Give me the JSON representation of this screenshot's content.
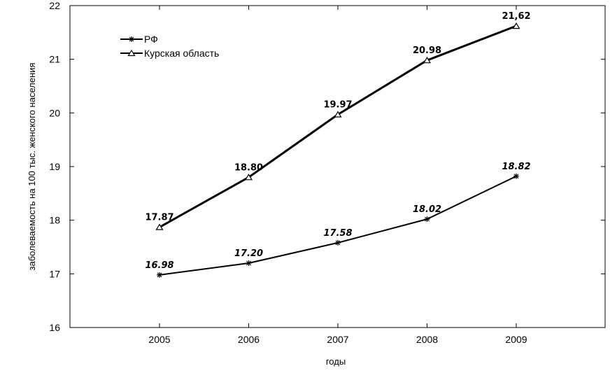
{
  "chart_data": {
    "type": "line",
    "xlabel": "годы",
    "ylabel": "заболеваемость на 100 тыс. женского населения",
    "x": [
      2005,
      2006,
      2007,
      2008,
      2009
    ],
    "x_tick_labels": [
      "2005",
      "2006",
      "2007",
      "2008",
      "2009"
    ],
    "ylim": [
      16,
      22
    ],
    "y_ticks": [
      16,
      17,
      18,
      19,
      20,
      21,
      22
    ],
    "y_tick_labels": [
      "16",
      "17",
      "18",
      "19",
      "20",
      "21",
      "22"
    ],
    "legend_position": "top-left",
    "grid": false,
    "series": [
      {
        "name": "РФ",
        "marker": "star",
        "label_style": "italic",
        "values": [
          16.98,
          17.2,
          17.58,
          18.02,
          18.82
        ],
        "value_labels": [
          "16.98",
          "17.20",
          "17.58",
          "18.02",
          "18.82"
        ]
      },
      {
        "name": "Курская область",
        "marker": "triangle",
        "label_style": "normal",
        "values": [
          17.87,
          18.8,
          19.97,
          20.98,
          21.62
        ],
        "value_labels": [
          "17.87",
          "18.80",
          "19.97",
          "20.98",
          "21,62"
        ]
      }
    ]
  }
}
